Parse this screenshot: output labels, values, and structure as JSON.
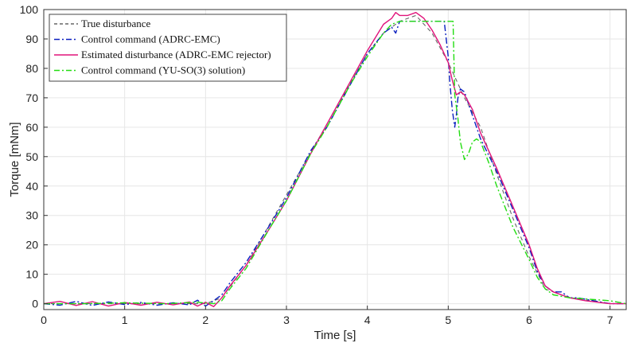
{
  "chart_data": {
    "type": "line",
    "title": "",
    "xlabel": "Time [s]",
    "ylabel": "Torque [mNm]",
    "xlim": [
      0,
      7.2
    ],
    "ylim": [
      -2,
      100
    ],
    "xticks": [
      0,
      1,
      2,
      3,
      4,
      5,
      6,
      7
    ],
    "yticks": [
      0,
      10,
      20,
      30,
      40,
      50,
      60,
      70,
      80,
      90,
      100
    ],
    "grid": true,
    "legend_position": "top-left",
    "series": [
      {
        "name": "True disturbance",
        "color": "#666666",
        "dash": "dashed",
        "x": [
          0,
          1,
          2,
          2.2,
          2.5,
          3,
          3.5,
          4,
          4.2,
          4.4,
          4.6,
          4.8,
          5,
          5.2,
          5.4,
          5.6,
          5.8,
          6,
          6.2,
          6.5,
          7,
          7.2
        ],
        "y": [
          0,
          0,
          0,
          2,
          13,
          37,
          61,
          85,
          92,
          96,
          98,
          92,
          82,
          70,
          60,
          44,
          29,
          16,
          5,
          2,
          0,
          0
        ]
      },
      {
        "name": "Control command (ADRC-EMC)",
        "color": "#0a1fbf",
        "dash": "dashdot",
        "x": [
          0,
          0.2,
          0.4,
          0.6,
          0.8,
          1,
          1.2,
          1.4,
          1.6,
          1.8,
          1.9,
          2,
          2.1,
          2.2,
          2.3,
          2.5,
          2.8,
          3,
          3.3,
          3.5,
          3.8,
          4,
          4.2,
          4.3,
          4.35,
          4.4,
          4.5,
          4.7,
          4.8,
          4.95,
          5.0,
          5.02,
          5.05,
          5.08,
          5.1,
          5.12,
          5.15,
          5.2,
          5.3,
          5.4,
          5.6,
          5.8,
          6,
          6.1,
          6.2,
          6.3,
          6.4,
          6.5,
          6.6,
          6.8,
          7,
          7.2
        ],
        "y": [
          0,
          -0.5,
          0.8,
          -0.6,
          0.6,
          -0.3,
          0.4,
          -0.5,
          0.3,
          -0.4,
          1.2,
          -0.8,
          1.0,
          3,
          7,
          14,
          27,
          36,
          52,
          60,
          75,
          85,
          92,
          94,
          92,
          96,
          96,
          96,
          96,
          96,
          84,
          75,
          66,
          60,
          64,
          70,
          73,
          72,
          64,
          56,
          45,
          32,
          19,
          11,
          6,
          4,
          4,
          2,
          2,
          1,
          0,
          0
        ]
      },
      {
        "name": "Estimated disturbance (ADRC-EMC rejector)",
        "color": "#e0137a",
        "dash": "solid",
        "x": [
          0,
          0.2,
          0.4,
          0.6,
          0.8,
          1,
          1.2,
          1.4,
          1.6,
          1.8,
          1.9,
          2,
          2.1,
          2.2,
          2.3,
          2.5,
          2.8,
          3,
          3.3,
          3.5,
          3.8,
          4,
          4.2,
          4.3,
          4.35,
          4.4,
          4.5,
          4.6,
          4.7,
          4.8,
          4.9,
          5.0,
          5.05,
          5.1,
          5.15,
          5.2,
          5.3,
          5.4,
          5.6,
          5.8,
          6,
          6.1,
          6.2,
          6.3,
          6.5,
          6.7,
          7,
          7.2
        ],
        "y": [
          0,
          0.8,
          -0.6,
          0.7,
          -0.8,
          0.4,
          -0.5,
          0.5,
          -0.4,
          0.6,
          -0.8,
          0.5,
          -1,
          2,
          6,
          13,
          26,
          35,
          51,
          61,
          76,
          86,
          95,
          97,
          99,
          98,
          98,
          99,
          97,
          93,
          88,
          82,
          76,
          71,
          72,
          71,
          66,
          58,
          46,
          33,
          20,
          12,
          6,
          4,
          2,
          1,
          0,
          0
        ]
      },
      {
        "name": "Control command (YU-SO(3) solution)",
        "color": "#22dd11",
        "dash": "dashdot",
        "x": [
          0,
          0.5,
          1,
          1.5,
          1.9,
          2.1,
          2.2,
          2.3,
          2.5,
          2.8,
          3,
          3.3,
          3.5,
          3.8,
          4,
          4.2,
          4.3,
          4.4,
          4.6,
          4.8,
          5.0,
          5.06,
          5.08,
          5.12,
          5.15,
          5.2,
          5.25,
          5.3,
          5.35,
          5.4,
          5.5,
          5.6,
          5.8,
          6,
          6.1,
          6.2,
          6.3,
          6.5,
          7,
          7.2
        ],
        "y": [
          0,
          0,
          0.3,
          0,
          0.5,
          0,
          1,
          5,
          12,
          26,
          35,
          51,
          60,
          75,
          84,
          92,
          95,
          96,
          96,
          96,
          96,
          96,
          71,
          63,
          55,
          49,
          51,
          55,
          56,
          55,
          48,
          40,
          26,
          15,
          9,
          5,
          3,
          2,
          1,
          0
        ]
      }
    ]
  }
}
